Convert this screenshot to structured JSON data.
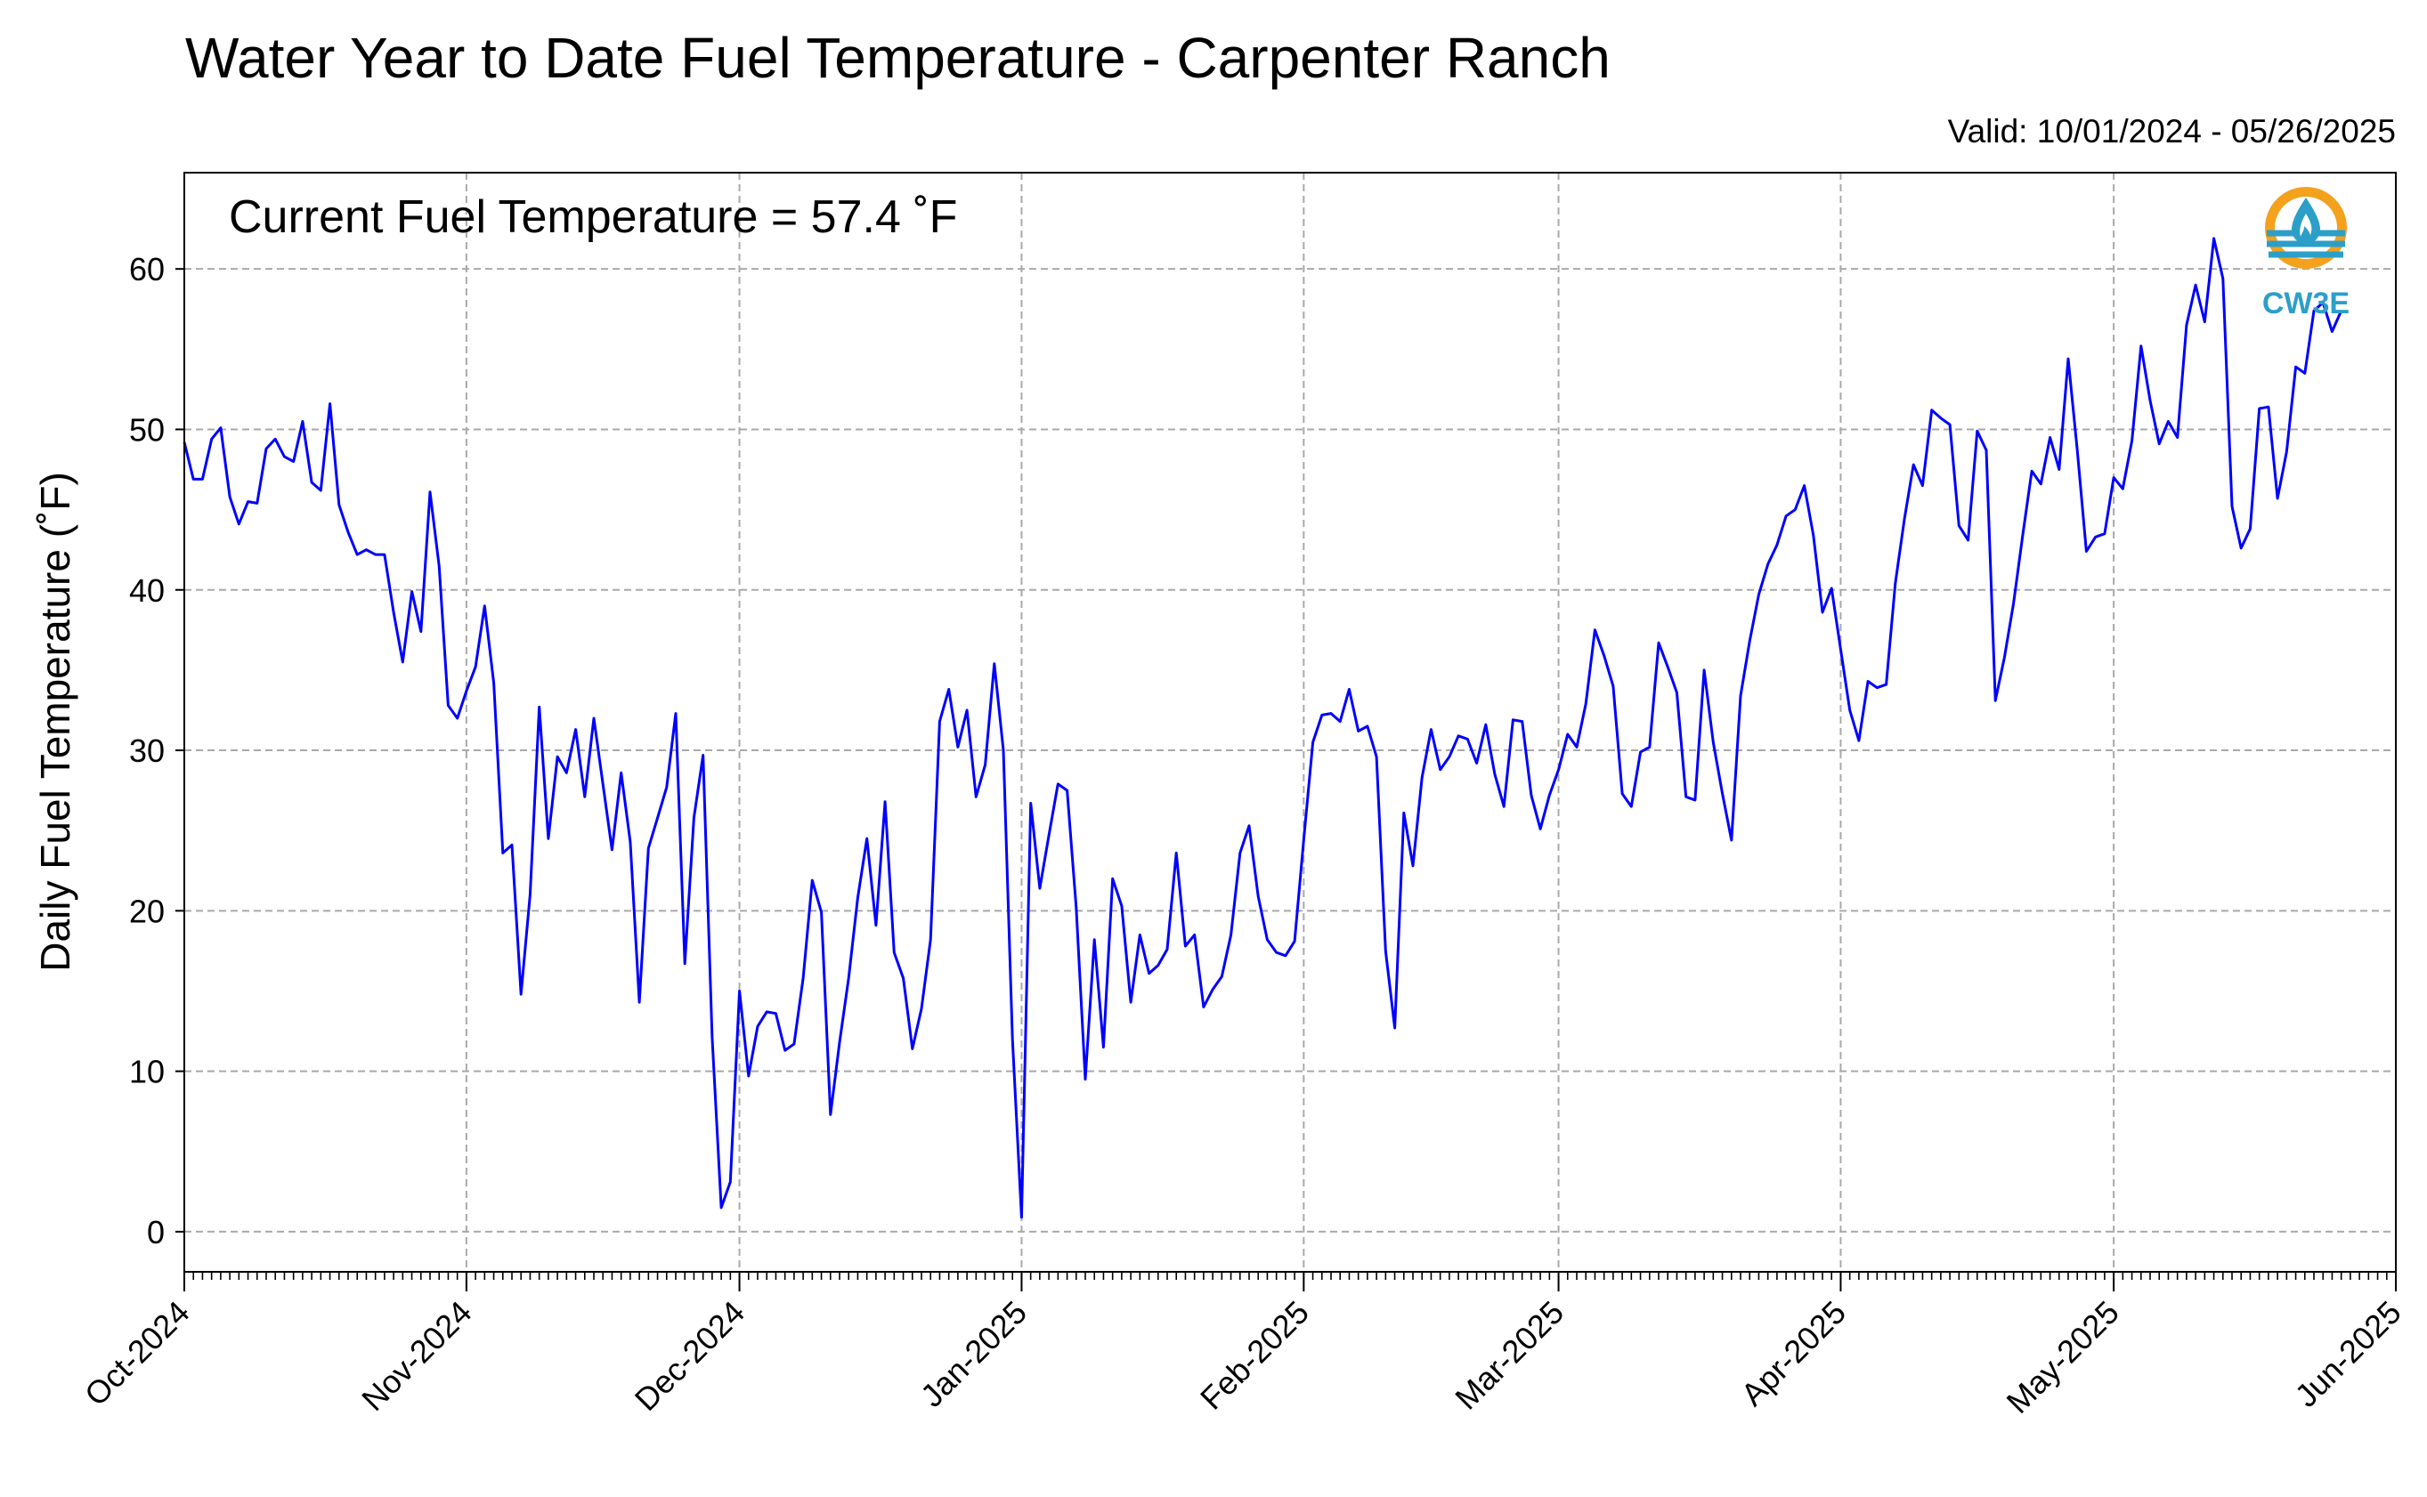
{
  "chart_data": {
    "type": "line",
    "title": "Water Year to Date Fuel Temperature - Carpenter Ranch",
    "subtitle": "Valid: 10/01/2024 - 05/26/2025",
    "annotation": "Current Fuel Temperature = 57.4  ˚F",
    "xlabel": "",
    "ylabel": "Daily Fuel Temperature (˚F)",
    "ylim": [
      -2.5,
      66
    ],
    "yticks": [
      0,
      10,
      20,
      30,
      40,
      50,
      60
    ],
    "xlim": [
      "2024-10-01",
      "2025-06-01"
    ],
    "xticks": [
      {
        "date": "2024-10-01",
        "label": "Oct-2024"
      },
      {
        "date": "2024-11-01",
        "label": "Nov-2024"
      },
      {
        "date": "2024-12-01",
        "label": "Dec-2024"
      },
      {
        "date": "2025-01-01",
        "label": "Jan-2025"
      },
      {
        "date": "2025-02-01",
        "label": "Feb-2025"
      },
      {
        "date": "2025-03-01",
        "label": "Mar-2025"
      },
      {
        "date": "2025-04-01",
        "label": "Apr-2025"
      },
      {
        "date": "2025-05-01",
        "label": "May-2025"
      },
      {
        "date": "2025-06-01",
        "label": "Jun-2025"
      }
    ],
    "grid": true,
    "series": [
      {
        "color": "#0000ff",
        "x_start": "2024-10-01",
        "x_step": "1 day",
        "values": [
          49.2,
          46.9,
          46.9,
          49.4,
          50.1,
          45.8,
          44.1,
          45.5,
          45.4,
          48.8,
          49.4,
          48.3,
          48.0,
          50.5,
          46.7,
          46.2,
          51.6,
          45.3,
          43.6,
          42.2,
          42.5,
          42.2,
          42.2,
          38.6,
          35.5,
          39.9,
          37.4,
          46.1,
          41.5,
          32.8,
          32.0,
          33.7,
          35.2,
          39.0,
          34.2,
          23.6,
          24.1,
          14.8,
          21.0,
          32.7,
          24.5,
          29.6,
          28.6,
          31.3,
          27.1,
          32.0,
          27.9,
          23.8,
          28.6,
          24.3,
          14.3,
          23.9,
          25.8,
          27.7,
          32.3,
          16.7,
          25.8,
          29.7,
          12.1,
          1.5,
          3.1,
          15.0,
          9.7,
          12.8,
          13.7,
          13.6,
          11.3,
          11.7,
          15.8,
          21.9,
          19.9,
          7.3,
          11.8,
          15.8,
          20.8,
          24.5,
          19.1,
          26.8,
          17.4,
          15.8,
          11.4,
          13.9,
          18.2,
          31.8,
          33.8,
          30.2,
          32.5,
          27.1,
          29.1,
          35.4,
          30.0,
          12.0,
          0.9,
          26.7,
          21.4,
          24.7,
          27.9,
          27.5,
          20.2,
          9.5,
          18.2,
          11.5,
          22.0,
          20.3,
          14.3,
          18.5,
          16.1,
          16.6,
          17.6,
          23.6,
          17.8,
          18.5,
          14.0,
          15.1,
          15.9,
          18.5,
          23.6,
          25.3,
          20.9,
          18.2,
          17.4,
          17.2,
          18.1,
          24.4,
          30.5,
          32.2,
          32.3,
          31.8,
          33.8,
          31.2,
          31.5,
          29.6,
          17.5,
          12.7,
          26.1,
          22.8,
          28.3,
          31.3,
          28.8,
          29.6,
          30.9,
          30.7,
          29.2,
          31.6,
          28.5,
          26.5,
          31.9,
          31.8,
          27.2,
          25.1,
          27.2,
          28.8,
          31.0,
          30.2,
          32.9,
          37.5,
          35.9,
          34.0,
          27.3,
          26.5,
          29.9,
          30.2,
          36.7,
          35.2,
          33.6,
          27.1,
          26.9,
          35.0,
          30.5,
          27.3,
          24.4,
          33.4,
          36.8,
          39.7,
          41.6,
          42.8,
          44.6,
          45.0,
          46.5,
          43.4,
          38.6,
          40.1,
          36.3,
          32.5,
          30.6,
          34.3,
          33.9,
          34.1,
          40.4,
          44.4,
          47.8,
          46.5,
          51.2,
          50.7,
          50.3,
          44.0,
          43.1,
          49.9,
          48.7,
          33.1,
          35.8,
          39.2,
          43.4,
          47.4,
          46.6,
          49.5,
          47.5,
          54.4,
          48.7,
          42.4,
          43.3,
          43.5,
          47.0,
          46.3,
          49.3,
          55.2,
          51.8,
          49.1,
          50.5,
          49.5,
          56.5,
          59.0,
          56.7,
          61.9,
          59.4,
          45.2,
          42.6,
          43.8,
          51.3,
          51.4,
          45.7,
          48.6,
          53.9,
          53.5,
          57.4,
          57.9,
          56.1,
          57.4
        ]
      }
    ]
  },
  "logo": {
    "text": "CW3E",
    "colors": {
      "orange": "#f4a11e",
      "blue": "#2c9fc9",
      "dark_blue": "#2a6f8a"
    }
  }
}
